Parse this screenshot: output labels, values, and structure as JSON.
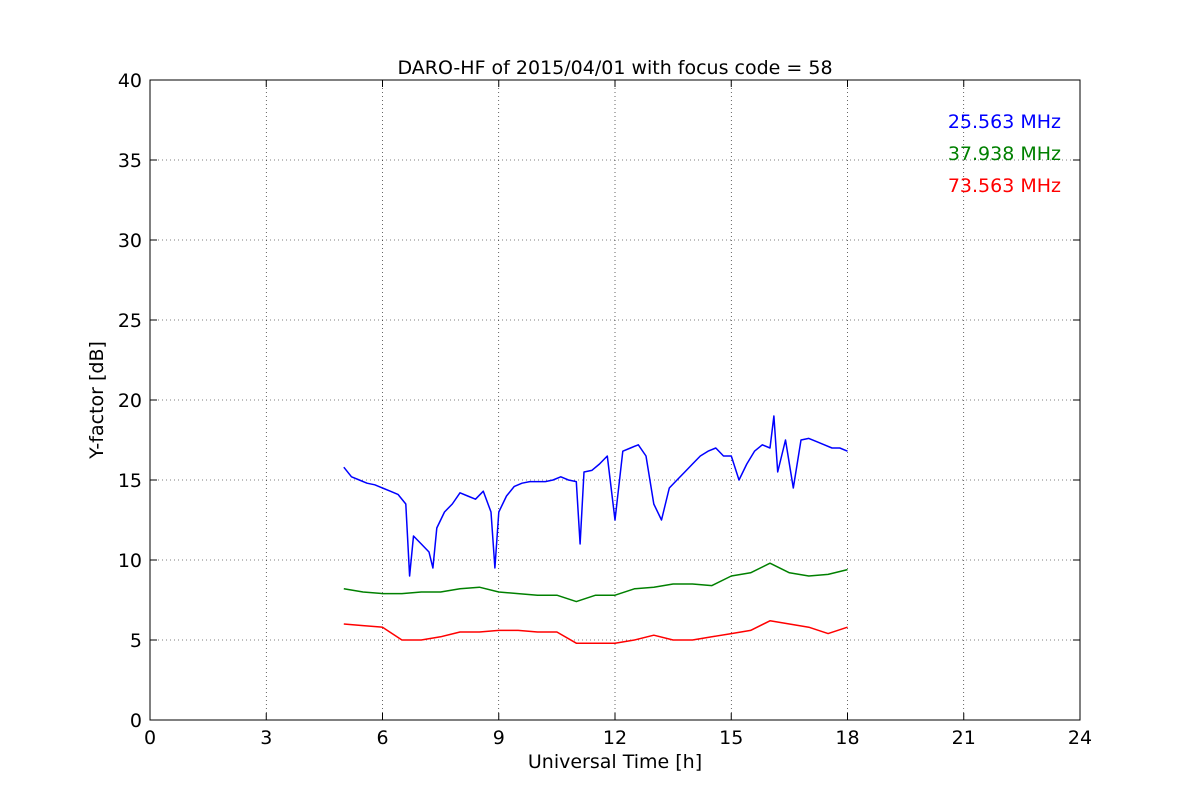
{
  "chart_data": {
    "type": "line",
    "title": "DARO-HF of 2015/04/01 with focus code = 58",
    "xlabel": "Universal Time [h]",
    "ylabel": "Y-factor [dB]",
    "xlim": [
      0,
      24
    ],
    "ylim": [
      0,
      40
    ],
    "xticks": [
      0,
      3,
      6,
      9,
      12,
      15,
      18,
      21,
      24
    ],
    "yticks": [
      0,
      5,
      10,
      15,
      20,
      25,
      30,
      35,
      40
    ],
    "grid": true,
    "legend_position": "top-right",
    "series": [
      {
        "name": "25.563 MHz",
        "color": "#0000ff",
        "x": [
          5.0,
          5.2,
          5.4,
          5.6,
          5.8,
          6.0,
          6.2,
          6.4,
          6.6,
          6.7,
          6.8,
          7.0,
          7.2,
          7.3,
          7.4,
          7.6,
          7.8,
          8.0,
          8.2,
          8.4,
          8.6,
          8.8,
          8.9,
          9.0,
          9.2,
          9.4,
          9.6,
          9.8,
          10.0,
          10.2,
          10.4,
          10.6,
          10.8,
          11.0,
          11.1,
          11.2,
          11.4,
          11.6,
          11.8,
          12.0,
          12.2,
          12.4,
          12.6,
          12.8,
          13.0,
          13.2,
          13.4,
          13.6,
          13.8,
          14.0,
          14.2,
          14.4,
          14.6,
          14.8,
          15.0,
          15.2,
          15.4,
          15.6,
          15.8,
          16.0,
          16.1,
          16.2,
          16.4,
          16.6,
          16.8,
          17.0,
          17.2,
          17.4,
          17.6,
          17.8,
          18.0
        ],
        "y": [
          15.8,
          15.2,
          15.0,
          14.8,
          14.7,
          14.5,
          14.3,
          14.1,
          13.5,
          9.0,
          11.5,
          11.0,
          10.5,
          9.5,
          12.0,
          13.0,
          13.5,
          14.2,
          14.0,
          13.8,
          14.3,
          13.0,
          9.5,
          13.0,
          14.0,
          14.6,
          14.8,
          14.9,
          14.9,
          14.9,
          15.0,
          15.2,
          15.0,
          14.9,
          11.0,
          15.5,
          15.6,
          16.0,
          16.5,
          12.5,
          16.8,
          17.0,
          17.2,
          16.5,
          13.5,
          12.5,
          14.5,
          15.0,
          15.5,
          16.0,
          16.5,
          16.8,
          17.0,
          16.5,
          16.5,
          15.0,
          16.0,
          16.8,
          17.2,
          17.0,
          19.0,
          15.5,
          17.5,
          14.5,
          17.5,
          17.6,
          17.4,
          17.2,
          17.0,
          17.0,
          16.8
        ]
      },
      {
        "name": "37.938 MHz",
        "color": "#008000",
        "x": [
          5.0,
          5.5,
          6.0,
          6.5,
          7.0,
          7.5,
          8.0,
          8.5,
          9.0,
          9.5,
          10.0,
          10.5,
          11.0,
          11.5,
          12.0,
          12.5,
          13.0,
          13.5,
          14.0,
          14.5,
          15.0,
          15.5,
          16.0,
          16.5,
          17.0,
          17.5,
          18.0
        ],
        "y": [
          8.2,
          8.0,
          7.9,
          7.9,
          8.0,
          8.0,
          8.2,
          8.3,
          8.0,
          7.9,
          7.8,
          7.8,
          7.4,
          7.8,
          7.8,
          8.2,
          8.3,
          8.5,
          8.5,
          8.4,
          9.0,
          9.2,
          9.8,
          9.2,
          9.0,
          9.1,
          9.4
        ]
      },
      {
        "name": "73.563 MHz",
        "color": "#ff0000",
        "x": [
          5.0,
          5.5,
          6.0,
          6.5,
          7.0,
          7.5,
          8.0,
          8.5,
          9.0,
          9.5,
          10.0,
          10.5,
          11.0,
          11.5,
          12.0,
          12.5,
          13.0,
          13.5,
          14.0,
          14.5,
          15.0,
          15.5,
          16.0,
          16.5,
          17.0,
          17.5,
          18.0
        ],
        "y": [
          6.0,
          5.9,
          5.8,
          5.0,
          5.0,
          5.2,
          5.5,
          5.5,
          5.6,
          5.6,
          5.5,
          5.5,
          4.8,
          4.8,
          4.8,
          5.0,
          5.3,
          5.0,
          5.0,
          5.2,
          5.4,
          5.6,
          6.2,
          6.0,
          5.8,
          5.4,
          5.8
        ]
      }
    ]
  }
}
